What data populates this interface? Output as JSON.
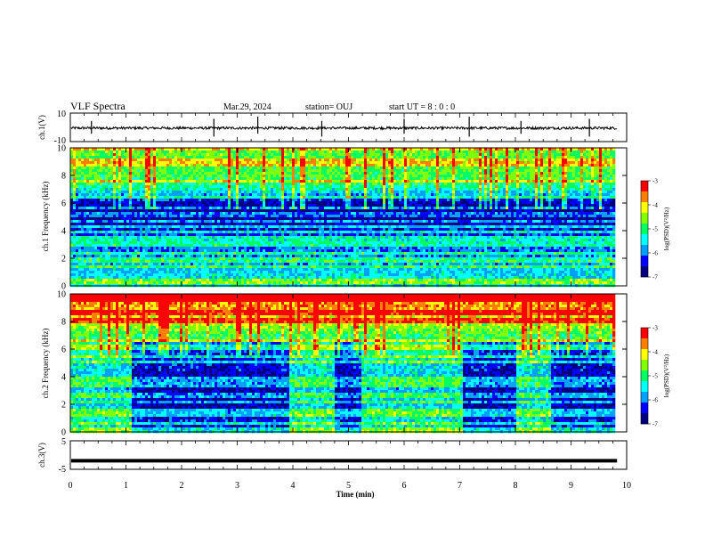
{
  "header": {
    "title": "VLF Spectra",
    "date": "Mar.29, 2024",
    "station": "station= OUJ",
    "start": "start  UT =   8 : 0  : 0"
  },
  "colors": {
    "spectrogram_palette": [
      "#000080",
      "#0000ff",
      "#00a0ff",
      "#00ffff",
      "#00ff60",
      "#80ff00",
      "#ffff00",
      "#ff8000",
      "#ff0000"
    ]
  },
  "chart_data": [
    {
      "type": "line",
      "name": "ch1-waveform",
      "ylabel": "ch.1(V)",
      "ylim": [
        -10,
        10
      ],
      "y_ticks": [
        "10",
        "-10"
      ],
      "xlim": [
        0,
        10
      ],
      "baseline": -0.5,
      "spikes_min": [
        0.38,
        2.58,
        3.37,
        4.52,
        6.0,
        7.17,
        8.1,
        9.33
      ]
    },
    {
      "type": "heatmap",
      "name": "ch1-spectrogram",
      "ylabel": "ch.1 Frequency (kHz)",
      "xlim": [
        0,
        10
      ],
      "ylim": [
        0,
        10
      ],
      "y_ticks": [
        "0",
        "2",
        "4",
        "6",
        "8",
        "10"
      ],
      "data_extent_min": 9.83,
      "colorbar": {
        "range": [
          -7,
          -3
        ],
        "ticks": [
          "-3",
          "-4",
          "-5",
          "-6",
          "-7"
        ],
        "label": "log(PSD)(V²/Hz)"
      },
      "band_profile_logpsd": [
        {
          "f": 0.0,
          "v": -5.3
        },
        {
          "f": 1.0,
          "v": -5.6
        },
        {
          "f": 2.0,
          "v": -5.9
        },
        {
          "f": 3.0,
          "v": -6.0
        },
        {
          "f": 4.0,
          "v": -6.3
        },
        {
          "f": 5.0,
          "v": -6.9
        },
        {
          "f": 6.0,
          "v": -6.6
        },
        {
          "f": 7.0,
          "v": -5.3
        },
        {
          "f": 8.0,
          "v": -4.8
        },
        {
          "f": 9.0,
          "v": -4.8
        },
        {
          "f": 10.0,
          "v": -4.7
        }
      ],
      "active_intervals_min": []
    },
    {
      "type": "heatmap",
      "name": "ch2-spectrogram",
      "ylabel": "ch.2 Frequency (kHz)",
      "xlim": [
        0,
        10
      ],
      "ylim": [
        0,
        10
      ],
      "y_ticks": [
        "0",
        "2",
        "4",
        "6",
        "8",
        "10"
      ],
      "data_extent_min": 9.83,
      "colorbar": {
        "range": [
          -7,
          -3
        ],
        "ticks": [
          "-3",
          "-4",
          "-5",
          "-6",
          "-7"
        ],
        "label": "log(PSD)(V²/Hz)"
      },
      "band_profile_logpsd": [
        {
          "f": 0.0,
          "v": -5.3
        },
        {
          "f": 1.0,
          "v": -5.4
        },
        {
          "f": 2.0,
          "v": -5.6
        },
        {
          "f": 3.0,
          "v": -5.7
        },
        {
          "f": 4.0,
          "v": -5.6
        },
        {
          "f": 5.0,
          "v": -5.4
        },
        {
          "f": 6.0,
          "v": -5.2
        },
        {
          "f": 7.0,
          "v": -4.9
        },
        {
          "f": 8.0,
          "v": -4.2
        },
        {
          "f": 9.0,
          "v": -3.8
        },
        {
          "f": 10.0,
          "v": -3.6
        }
      ],
      "active_intervals_min": [
        [
          1.1,
          3.9
        ],
        [
          4.75,
          5.2
        ],
        [
          7.05,
          8.0
        ],
        [
          8.6,
          9.83
        ]
      ],
      "active_top_khz": 6.5
    },
    {
      "type": "line",
      "name": "ch3-waveform",
      "ylabel": "ch.3(V)",
      "ylim": [
        -5,
        5
      ],
      "y_ticks": [
        "5",
        "-5"
      ],
      "xlim": [
        0,
        10
      ],
      "baseline": -2.0
    }
  ],
  "x_axis": {
    "label": "Time  (min)",
    "ticks": [
      "0",
      "1",
      "2",
      "3",
      "4",
      "5",
      "6",
      "7",
      "8",
      "9",
      "10"
    ]
  }
}
